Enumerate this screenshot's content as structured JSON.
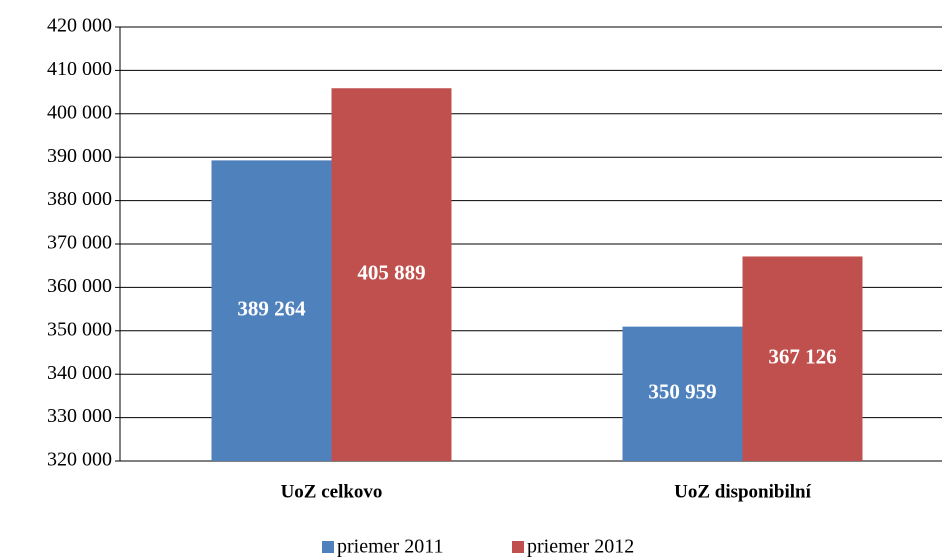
{
  "chart_data": {
    "type": "bar",
    "categories": [
      "UoZ celkovo",
      "UoZ disponibilní"
    ],
    "series": [
      {
        "name": "priemer 2011",
        "color": "#4f81bd",
        "values": [
          389264,
          350959
        ],
        "value_labels": [
          "389 264",
          "350 959"
        ]
      },
      {
        "name": "priemer 2012",
        "color": "#c0504d",
        "values": [
          405889,
          367126
        ],
        "value_labels": [
          "405 889",
          "367 126"
        ]
      }
    ],
    "ylim": [
      320000,
      420000
    ],
    "yticks": [
      {
        "value": 320000,
        "label": "320 000"
      },
      {
        "value": 330000,
        "label": "330 000"
      },
      {
        "value": 340000,
        "label": "340 000"
      },
      {
        "value": 350000,
        "label": "350 000"
      },
      {
        "value": 360000,
        "label": "360 000"
      },
      {
        "value": 370000,
        "label": "370 000"
      },
      {
        "value": 380000,
        "label": "380 000"
      },
      {
        "value": 390000,
        "label": "390 000"
      },
      {
        "value": 400000,
        "label": "400 000"
      },
      {
        "value": 410000,
        "label": "410 000"
      },
      {
        "value": 420000,
        "label": "420 000"
      }
    ],
    "grid": true,
    "legend": "bottom"
  }
}
